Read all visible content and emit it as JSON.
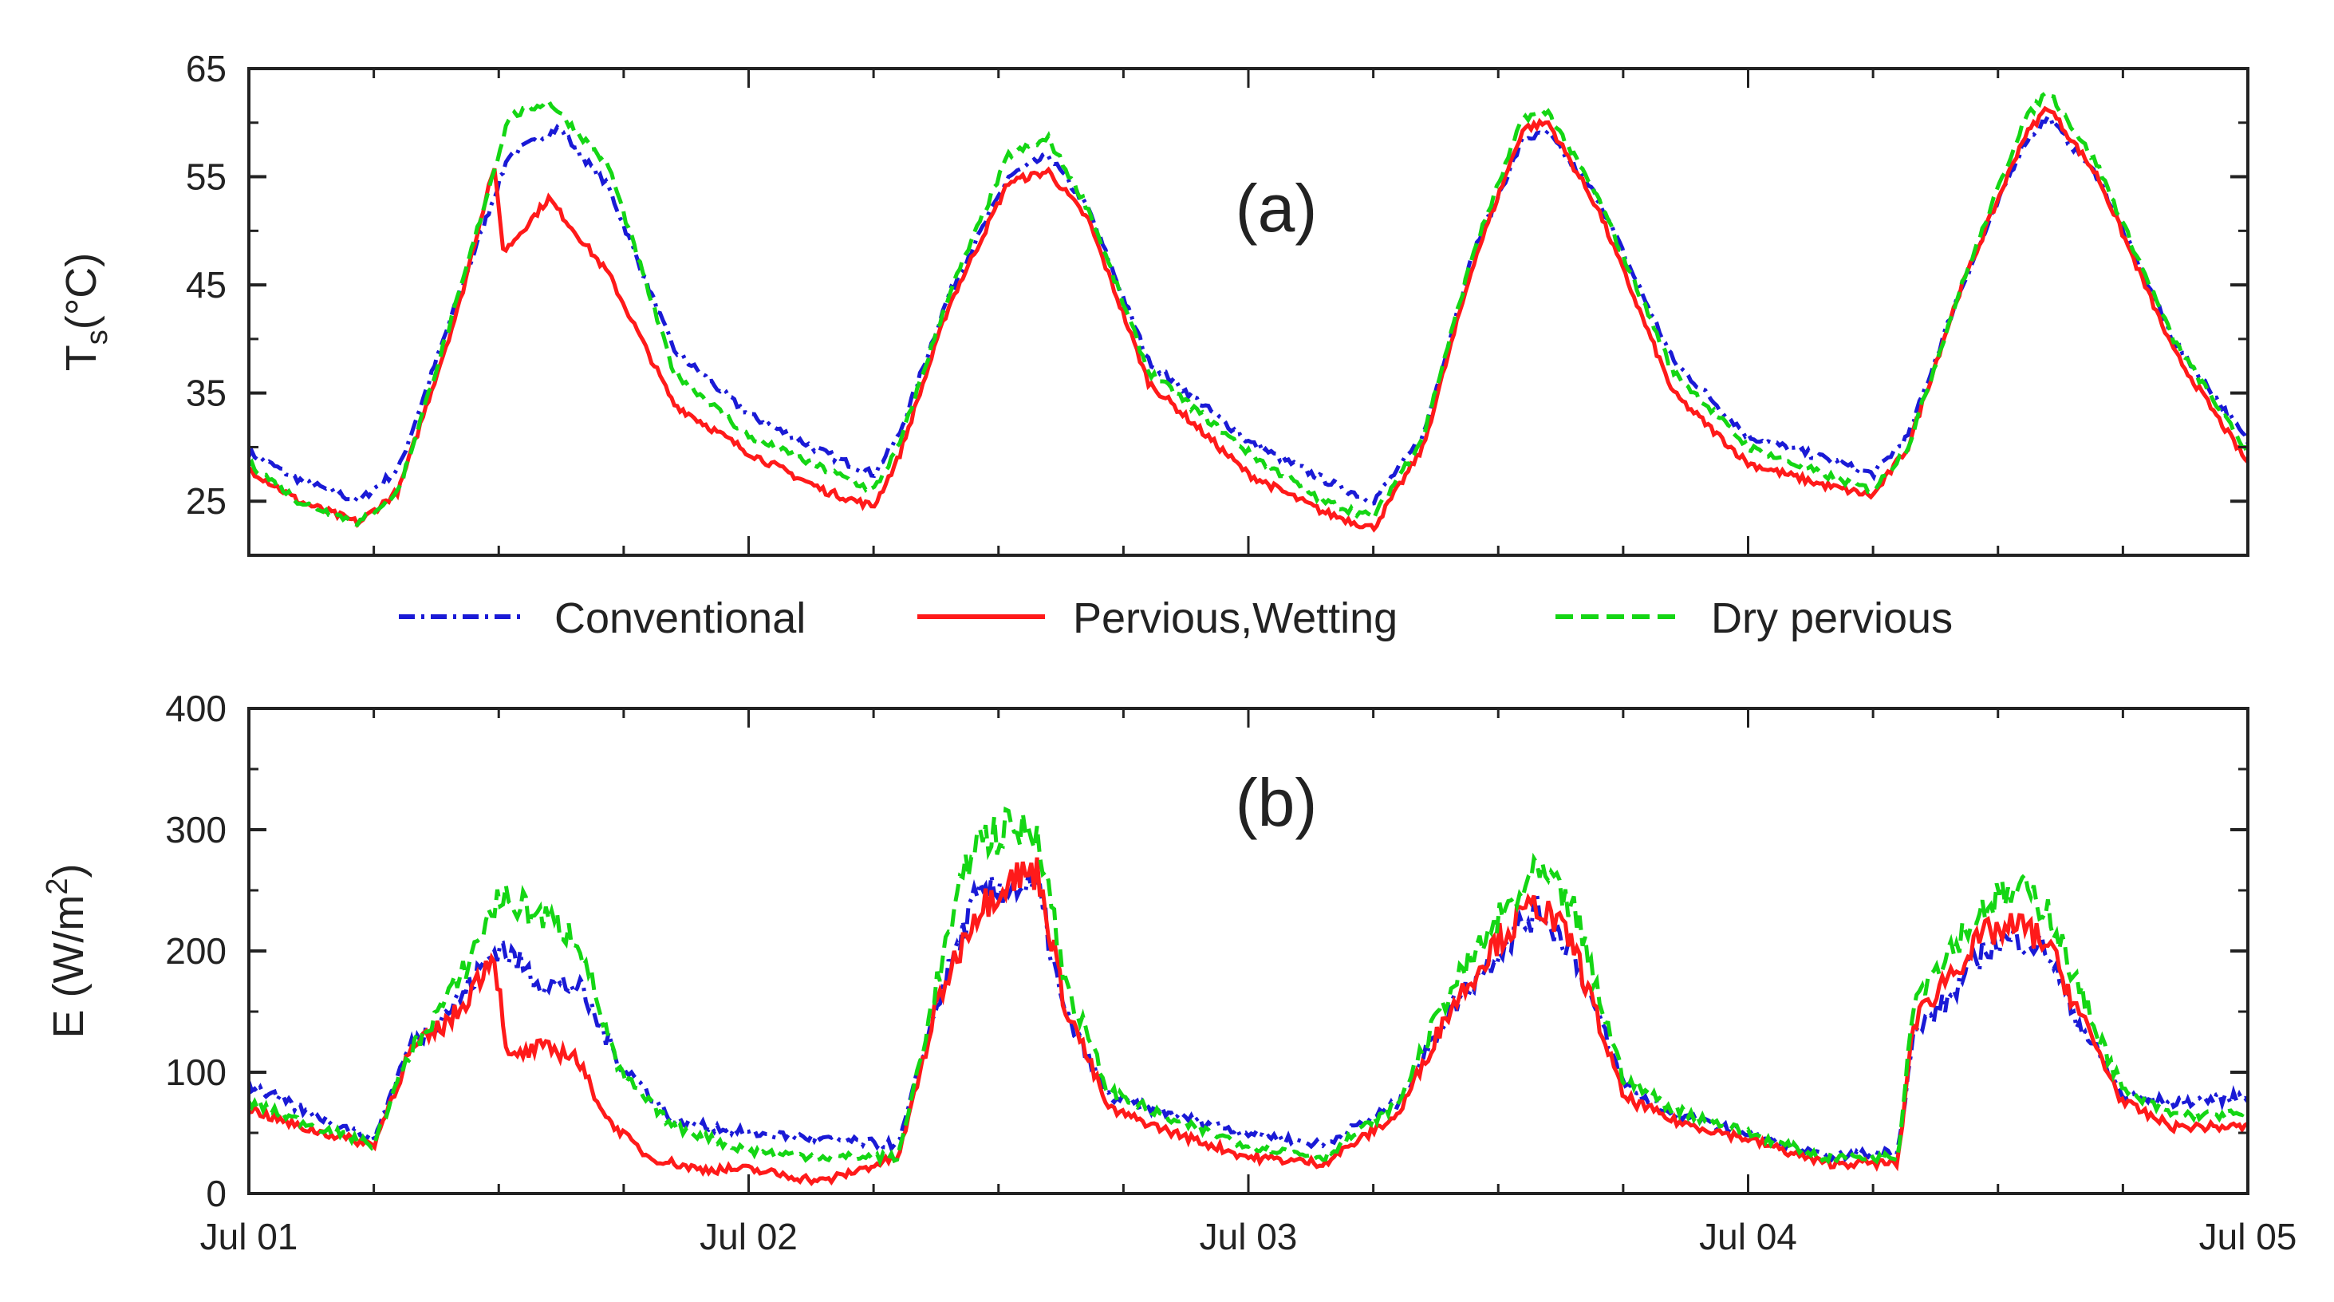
{
  "legend": [
    {
      "label": "Conventional",
      "color": "#1a1ad6",
      "dash": "dashdot"
    },
    {
      "label": "Pervious,Wetting",
      "color": "#ff1a1a",
      "dash": "solid"
    },
    {
      "label": "Dry pervious",
      "color": "#14d614",
      "dash": "dashed"
    }
  ],
  "x_tick_labels": [
    "Jul 01",
    "Jul 02",
    "Jul 03",
    "Jul 04",
    "Jul 05"
  ],
  "chart_data": [
    {
      "type": "line",
      "panel_label": "(a)",
      "ylabel_main": "T",
      "ylabel_sub": "s",
      "ylabel_rest": "(°C)",
      "xlabel": "",
      "x_unit": "days since Jul 01",
      "xlim": [
        0,
        4
      ],
      "ylim": [
        20,
        65
      ],
      "yticks": [
        25,
        35,
        45,
        55,
        65
      ],
      "grid": false,
      "series": [
        {
          "name": "Conventional",
          "x": [
            0,
            0.1,
            0.22,
            0.3,
            0.42,
            0.52,
            0.62,
            0.72,
            0.85,
            1.0,
            1.15,
            1.25,
            1.3,
            1.4,
            1.52,
            1.6,
            1.68,
            1.8,
            2.0,
            2.15,
            2.25,
            2.35,
            2.45,
            2.55,
            2.6,
            2.7,
            2.85,
            3.0,
            3.15,
            3.25,
            3.32,
            3.42,
            3.55,
            3.6,
            3.7,
            3.85,
            4.0
          ],
          "y": [
            29.5,
            27,
            25,
            28,
            44,
            57,
            59.5,
            54,
            39,
            33,
            29.5,
            27.5,
            31,
            44,
            55,
            57,
            52,
            38,
            30.5,
            27,
            25,
            31,
            48,
            58.5,
            59,
            53,
            38,
            31,
            29,
            27.5,
            31,
            44,
            58,
            60.5,
            55,
            40,
            30.5
          ]
        },
        {
          "name": "Pervious,Wetting",
          "x": [
            0,
            0.1,
            0.22,
            0.3,
            0.42,
            0.49,
            0.51,
            0.6,
            0.72,
            0.85,
            1.0,
            1.15,
            1.25,
            1.3,
            1.4,
            1.52,
            1.6,
            1.68,
            1.8,
            2.0,
            2.15,
            2.25,
            2.35,
            2.45,
            2.55,
            2.6,
            2.7,
            2.85,
            3.0,
            3.15,
            3.25,
            3.32,
            3.42,
            3.55,
            3.6,
            3.7,
            3.85,
            4.0
          ],
          "y": [
            28,
            25,
            23,
            26,
            43,
            56,
            48,
            53,
            46,
            34,
            29.5,
            26,
            24.5,
            29,
            43,
            54.5,
            55.5,
            51,
            36,
            27.5,
            24,
            22.5,
            30,
            47,
            59.5,
            60,
            52,
            35,
            28.5,
            26.5,
            25.5,
            30,
            44,
            58.5,
            61.5,
            55,
            39,
            28.5
          ]
        },
        {
          "name": "Dry pervious",
          "x": [
            0,
            0.1,
            0.22,
            0.3,
            0.42,
            0.52,
            0.6,
            0.72,
            0.85,
            1.0,
            1.15,
            1.25,
            1.3,
            1.4,
            1.52,
            1.6,
            1.68,
            1.8,
            2.0,
            2.15,
            2.25,
            2.35,
            2.45,
            2.55,
            2.6,
            2.7,
            2.85,
            3.0,
            3.15,
            3.25,
            3.32,
            3.42,
            3.55,
            3.6,
            3.7,
            3.85,
            4.0
          ],
          "y": [
            28.5,
            25,
            23,
            26,
            44,
            60.5,
            62,
            56,
            37,
            31,
            28,
            26,
            30,
            44,
            57,
            58.5,
            52,
            37,
            29.5,
            25,
            23.5,
            31,
            48,
            60.5,
            61,
            53,
            37,
            30,
            27.5,
            26,
            30,
            44,
            60,
            63,
            56,
            40,
            29.5
          ]
        }
      ]
    },
    {
      "type": "line",
      "panel_label": "(b)",
      "ylabel_main": "E (W/m",
      "ylabel_sup": "2",
      "ylabel_rest": ")",
      "xlabel": "",
      "x_unit": "days since Jul 01",
      "xlim": [
        0,
        4
      ],
      "ylim": [
        0,
        400
      ],
      "yticks": [
        0,
        100,
        200,
        300,
        400
      ],
      "grid": false,
      "series": [
        {
          "name": "Conventional",
          "x": [
            0,
            0.1,
            0.25,
            0.32,
            0.42,
            0.5,
            0.58,
            0.66,
            0.74,
            0.85,
            1.0,
            1.15,
            1.3,
            1.38,
            1.45,
            1.52,
            1.58,
            1.63,
            1.72,
            1.85,
            2.0,
            2.15,
            2.3,
            2.4,
            2.5,
            2.58,
            2.65,
            2.75,
            2.85,
            3.0,
            3.15,
            3.3,
            3.33,
            3.4,
            3.48,
            3.55,
            3.6,
            3.65,
            3.75,
            3.85,
            4.0
          ],
          "y": [
            90,
            70,
            45,
            120,
            160,
            205,
            175,
            170,
            110,
            60,
            50,
            45,
            40,
            160,
            240,
            255,
            250,
            150,
            80,
            65,
            50,
            40,
            75,
            150,
            200,
            235,
            200,
            90,
            65,
            50,
            30,
            35,
            130,
            160,
            205,
            210,
            200,
            150,
            80,
            75,
            80
          ]
        },
        {
          "name": "Pervious,Wetting",
          "x": [
            0,
            0.1,
            0.25,
            0.32,
            0.42,
            0.49,
            0.52,
            0.58,
            0.65,
            0.72,
            0.8,
            0.9,
            1.0,
            1.15,
            1.3,
            1.38,
            1.45,
            1.52,
            1.58,
            1.63,
            1.72,
            1.85,
            2.0,
            2.15,
            2.3,
            2.4,
            2.5,
            2.58,
            2.65,
            2.75,
            2.85,
            3.0,
            3.15,
            3.3,
            3.33,
            3.4,
            3.48,
            3.55,
            3.6,
            3.65,
            3.75,
            3.85,
            4.0
          ],
          "y": [
            70,
            55,
            40,
            115,
            150,
            200,
            110,
            120,
            115,
            60,
            30,
            20,
            20,
            10,
            30,
            160,
            230,
            260,
            265,
            160,
            70,
            50,
            30,
            25,
            65,
            150,
            210,
            240,
            205,
            80,
            60,
            45,
            25,
            25,
            140,
            180,
            215,
            220,
            205,
            160,
            75,
            55,
            55
          ]
        },
        {
          "name": "Dry pervious",
          "x": [
            0,
            0.1,
            0.25,
            0.32,
            0.42,
            0.5,
            0.58,
            0.66,
            0.74,
            0.85,
            1.0,
            1.15,
            1.3,
            1.38,
            1.45,
            1.52,
            1.58,
            1.63,
            1.72,
            1.85,
            2.0,
            2.15,
            2.3,
            2.4,
            2.5,
            2.58,
            2.65,
            2.75,
            2.85,
            3.0,
            3.15,
            3.3,
            3.33,
            3.4,
            3.48,
            3.55,
            3.6,
            3.65,
            3.75,
            3.85,
            4.0
          ],
          "y": [
            75,
            60,
            40,
            115,
            175,
            245,
            230,
            210,
            100,
            55,
            35,
            30,
            30,
            180,
            290,
            300,
            300,
            180,
            85,
            60,
            40,
            30,
            75,
            165,
            225,
            265,
            235,
            95,
            70,
            50,
            30,
            30,
            160,
            200,
            240,
            250,
            235,
            180,
            85,
            65,
            65
          ]
        }
      ]
    }
  ]
}
